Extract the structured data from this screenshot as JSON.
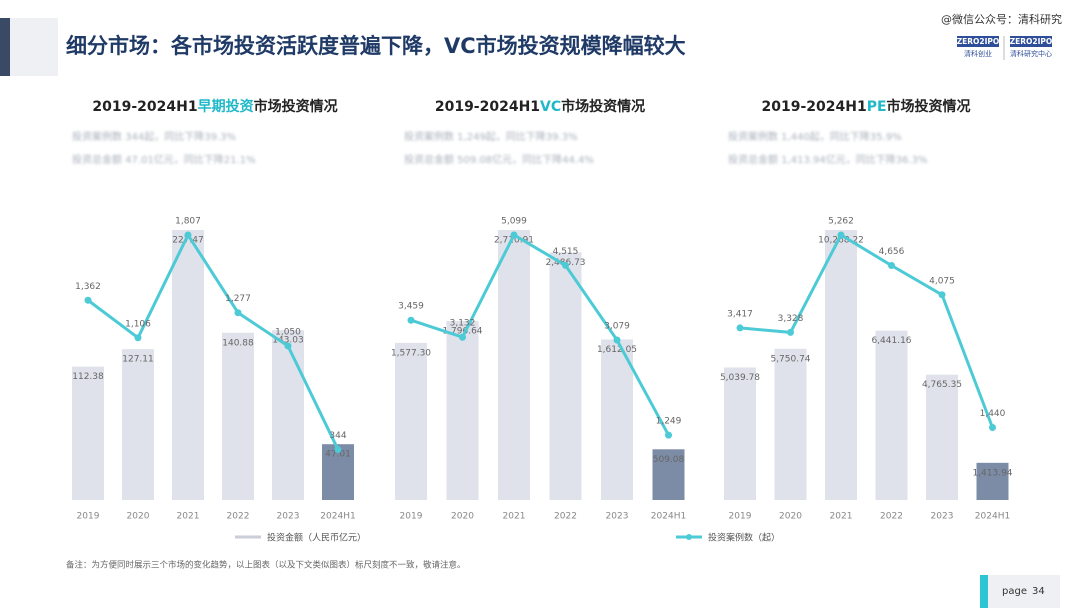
{
  "page": {
    "title": "细分市场：各市场投资活跃度普遍下降，VC市场投资规模降幅较大",
    "watermark": "@微信公众号：清科研究",
    "logos": [
      {
        "brand": "ZERO2IPO",
        "name": "清科创业"
      },
      {
        "brand": "ZERO2IPO",
        "name": "清科研究中心"
      }
    ],
    "footnote": "备注：为方便同时展示三个市场的变化趋势，以上图表（以及下文类似图表）标尺刻度不一致，敬请注意。",
    "page_label": "page",
    "page_number": "34",
    "legend": [
      {
        "name": "投资金额（人民币亿元）",
        "color": "#c9ced9"
      },
      {
        "name": "投资案例数（起）",
        "color": "#4ccad6"
      }
    ]
  },
  "chart_data": [
    {
      "type": "combo",
      "title": [
        "2019-2024H1",
        "早期投资",
        "市场投资情况"
      ],
      "subtitle": [
        "投资案例数 344起，同比下降39.3%",
        "投资总金额 47.01亿元，同比下降21.1%"
      ],
      "categories": [
        "2019",
        "2020",
        "2021",
        "2022",
        "2023",
        "2024H1"
      ],
      "series": [
        {
          "type": "bar",
          "colors": [
            "#dfe2ea",
            "#dfe2ea",
            "#dfe2ea",
            "#dfe2ea",
            "#dfe2ea",
            "#7d8ca6"
          ],
          "values": [
            112.38,
            127.11,
            227.47,
            140.88,
            143.03,
            47.01
          ],
          "value_labels": [
            "112.38",
            "127.11",
            "227.47",
            "140.88",
            "143.03",
            "47.01"
          ]
        },
        {
          "type": "line",
          "axis": "y2",
          "color": "#4ccad6",
          "values": [
            1362,
            1106,
            1807,
            1277,
            1050,
            344
          ],
          "value_labels": [
            "1,362",
            "1,106",
            "1,807",
            "1,277",
            "1,050",
            "344"
          ]
        }
      ]
    },
    {
      "type": "combo",
      "title": [
        "2019-2024H1",
        "VC",
        "市场投资情况"
      ],
      "subtitle": [
        "投资案例数 1,249起，同比下降39.3%",
        "投资总金额 509.08亿元，同比下降44.4%"
      ],
      "categories": [
        "2019",
        "2020",
        "2021",
        "2022",
        "2023",
        "2024H1"
      ],
      "series": [
        {
          "type": "bar",
          "colors": [
            "#dfe2ea",
            "#dfe2ea",
            "#dfe2ea",
            "#dfe2ea",
            "#dfe2ea",
            "#7d8ca6"
          ],
          "values": [
            1577.3,
            1796.64,
            2710.91,
            2486.73,
            1612.05,
            509.08
          ],
          "value_labels": [
            "1,577.30",
            "1,796.64",
            "2,710.91",
            "2,486.73",
            "1,612.05",
            "509.08"
          ]
        },
        {
          "type": "line",
          "axis": "y2",
          "color": "#4ccad6",
          "values": [
            3459,
            3132,
            5099,
            4515,
            3079,
            1249
          ],
          "value_labels": [
            "3,459",
            "3,132",
            "5,099",
            "4,515",
            "3,079",
            "1,249"
          ]
        }
      ]
    },
    {
      "type": "combo",
      "title": [
        "2019-2024H1",
        "PE",
        "市场投资情况"
      ],
      "subtitle": [
        "投资案例数 1,440起，同比下降35.9%",
        "投资总金额 1,413.94亿元，同比下降36.3%"
      ],
      "categories": [
        "2019",
        "2020",
        "2021",
        "2022",
        "2023",
        "2024H1"
      ],
      "series": [
        {
          "type": "bar",
          "colors": [
            "#dfe2ea",
            "#dfe2ea",
            "#dfe2ea",
            "#dfe2ea",
            "#dfe2ea",
            "#7d8ca6"
          ],
          "values": [
            5039.78,
            5750.74,
            10268.22,
            6441.16,
            4765.35,
            1413.94
          ],
          "value_labels": [
            "5,039.78",
            "5,750.74",
            "10,268.22",
            "6,441.16",
            "4,765.35",
            "1,413.94"
          ]
        },
        {
          "type": "line",
          "axis": "y2",
          "color": "#4ccad6",
          "values": [
            3417,
            3328,
            5262,
            4656,
            4075,
            1440
          ],
          "value_labels": [
            "3,417",
            "3,328",
            "5,262",
            "4,656",
            "4,075",
            "1,440"
          ]
        }
      ]
    }
  ]
}
